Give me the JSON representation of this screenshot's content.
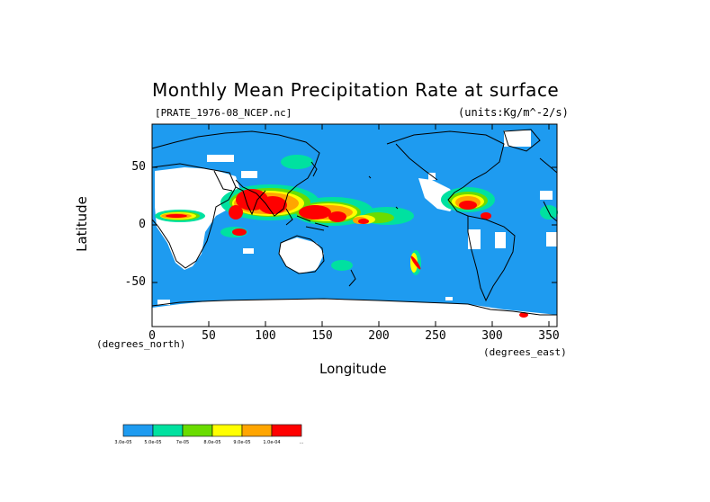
{
  "title": "Monthly Mean Precipitation Rate at surface",
  "source_file": "[PRATE_1976-08_NCEP.nc]",
  "units": "(units:Kg/m^-2/s)",
  "axes": {
    "ylabel": "Latitude",
    "xlabel": "Longitude",
    "y_note": "(degrees_north)",
    "x_note": "(degrees_east)",
    "y_ticks": [
      "50",
      "0",
      "-50"
    ],
    "x_ticks": [
      "0",
      "50",
      "100",
      "150",
      "200",
      "250",
      "300",
      "350"
    ],
    "x_range": [
      0,
      357.5
    ],
    "y_range": [
      -88,
      88
    ]
  },
  "colorbar": {
    "colors": [
      "#1e9bf0",
      "#00e1a0",
      "#6adc00",
      "#ffff00",
      "#ffa500",
      "#ff0000"
    ],
    "labels": [
      "3.0e-05",
      "5.0e-05",
      "7e-05",
      "8.0e-05",
      "9.0e-05",
      "1.0e-04",
      "..."
    ]
  },
  "colors": {
    "ocean_base": "#1e9bf0",
    "missing": "#ffffff",
    "coast": "#000000"
  }
}
